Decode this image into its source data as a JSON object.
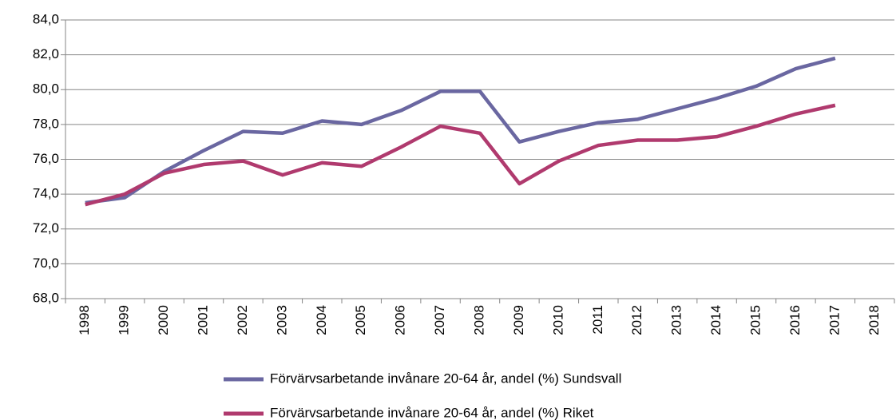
{
  "chart_data": {
    "type": "line",
    "categories": [
      "1998",
      "1999",
      "2000",
      "2001",
      "2002",
      "2003",
      "2004",
      "2005",
      "2006",
      "2007",
      "2008",
      "2009",
      "2010",
      "2011",
      "2012",
      "2013",
      "2014",
      "2015",
      "2016",
      "2017",
      "2018"
    ],
    "series": [
      {
        "name": "Förvärvsarbetande invånare 20-64 år, andel (%)  Sundsvall",
        "color": "#6a67a1",
        "values": [
          73.5,
          73.8,
          75.3,
          76.5,
          77.6,
          77.5,
          78.2,
          78.0,
          78.8,
          79.9,
          79.9,
          77.0,
          77.6,
          78.1,
          78.3,
          78.9,
          79.5,
          80.2,
          81.2,
          81.8,
          null
        ]
      },
      {
        "name": "Förvärvsarbetande invånare 20-64 år, andel (%)  Riket",
        "color": "#b03a6e",
        "values": [
          73.4,
          74.0,
          75.2,
          75.7,
          75.9,
          75.1,
          75.8,
          75.6,
          76.7,
          77.9,
          77.5,
          74.6,
          75.9,
          76.8,
          77.1,
          77.1,
          77.3,
          77.9,
          78.6,
          79.1,
          null
        ]
      }
    ],
    "ylim": [
      68,
      84
    ],
    "yticks": [
      {
        "value": 68,
        "label": "68,0"
      },
      {
        "value": 70,
        "label": "70,0"
      },
      {
        "value": 72,
        "label": "72,0"
      },
      {
        "value": 74,
        "label": "74,0"
      },
      {
        "value": 76,
        "label": "76,0"
      },
      {
        "value": 78,
        "label": "78,0"
      },
      {
        "value": 80,
        "label": "80,0"
      },
      {
        "value": 82,
        "label": "82,0"
      },
      {
        "value": 84,
        "label": "84,0"
      }
    ],
    "grid": true,
    "legend": "bottom"
  }
}
